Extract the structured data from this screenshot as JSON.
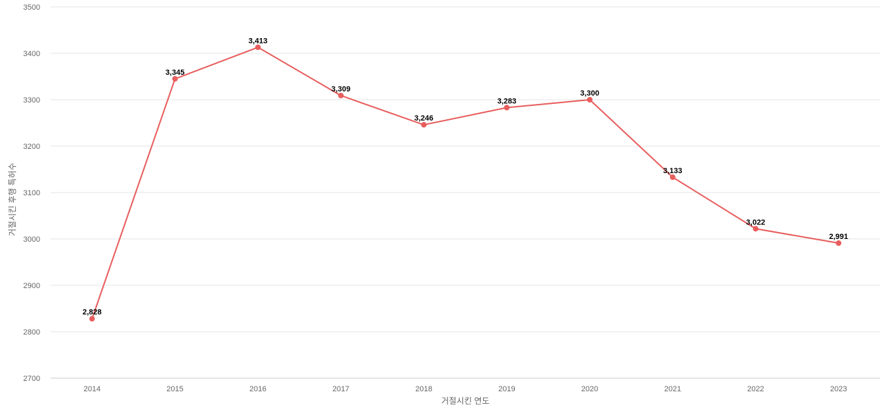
{
  "chart_data": {
    "type": "line",
    "title": "",
    "xlabel": "거절시킨 연도",
    "ylabel": "거절시킨 후행 특허수",
    "x": [
      "2014",
      "2015",
      "2016",
      "2017",
      "2018",
      "2019",
      "2020",
      "2021",
      "2022",
      "2023"
    ],
    "series": [
      {
        "values": [
          2828,
          3345,
          3413,
          3309,
          3246,
          3283,
          3300,
          3133,
          3022,
          2991
        ],
        "labels": [
          "2,828",
          "3,345",
          "3,413",
          "3,309",
          "3,246",
          "3,283",
          "3,300",
          "3,133",
          "3,022",
          "2,991"
        ],
        "color": "#e85d5d"
      }
    ],
    "ylim": [
      2700,
      3500
    ],
    "yticks": [
      "2700",
      "2800",
      "2900",
      "3000",
      "3100",
      "3200",
      "3300",
      "3400",
      "3500"
    ],
    "grid": true,
    "legend": "none"
  }
}
